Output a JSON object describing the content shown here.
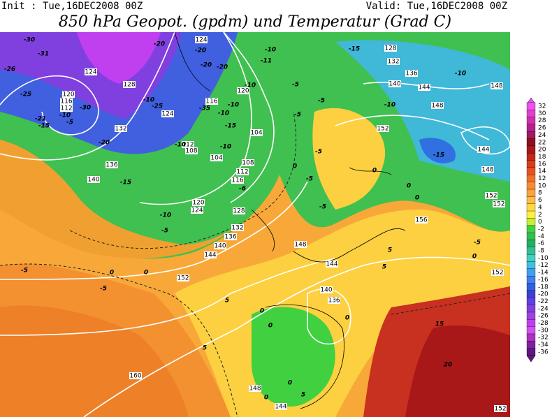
{
  "header": {
    "init": "Init : Tue,16DEC2008 00Z",
    "valid": "Valid: Tue,16DEC2008 00Z",
    "title": "850 hPa Geopot. (gpdm) und Temperatur (Grad C)"
  },
  "colorbar": {
    "ticks": [
      32,
      30,
      28,
      26,
      24,
      22,
      20,
      18,
      16,
      14,
      12,
      10,
      8,
      6,
      4,
      2,
      0,
      -2,
      -4,
      -6,
      -8,
      -10,
      -12,
      -14,
      -16,
      -18,
      -20,
      -22,
      -24,
      -26,
      -28,
      -30,
      -32,
      -34,
      -36
    ],
    "colors": [
      "#f050f0",
      "#e040d0",
      "#d030b0",
      "#b82090",
      "#a01a60",
      "#8c1020",
      "#a81818",
      "#c02818",
      "#d83c18",
      "#e85020",
      "#f07028",
      "#f88c30",
      "#fca040",
      "#ffbc40",
      "#ffd840",
      "#fff040",
      "#c8f030",
      "#40d040",
      "#30c050",
      "#20b060",
      "#30c090",
      "#40d0c0",
      "#40c0e0",
      "#40a0f0",
      "#4080f0",
      "#3060e0",
      "#4040d0",
      "#6040e0",
      "#8040e0",
      "#a040e0",
      "#c040f0",
      "#d050f0",
      "#b030c0",
      "#8020a0",
      "#601880"
    ]
  },
  "contour_labels": {
    "geopotential": [
      124,
      128,
      120,
      116,
      112,
      132,
      136,
      140,
      104,
      104,
      108,
      112,
      116,
      116,
      120,
      124,
      124,
      108,
      112,
      120,
      124,
      128,
      132,
      136,
      140,
      144,
      148,
      144,
      140,
      136,
      152,
      160,
      148,
      144,
      152,
      156,
      152,
      152,
      152,
      148,
      144,
      148,
      140,
      144,
      148,
      132,
      136,
      128,
      152
    ],
    "temperature": [
      -30,
      -31,
      -26,
      -25,
      -10,
      -5,
      -21,
      -15,
      -20,
      -15,
      -30,
      -20,
      -20,
      -20,
      -20,
      -10,
      -25,
      -35,
      -10,
      -10,
      -15,
      -10,
      -10,
      -10,
      -11,
      -5,
      -5,
      -10,
      -15,
      -10,
      -10,
      -15,
      -5,
      -5,
      -5,
      -6,
      -5,
      -10,
      -5,
      0,
      0,
      -5,
      -5,
      0,
      0,
      0,
      0,
      5,
      0,
      0,
      0,
      5,
      5,
      0,
      0,
      5,
      15,
      20,
      0,
      -5,
      5
    ]
  }
}
